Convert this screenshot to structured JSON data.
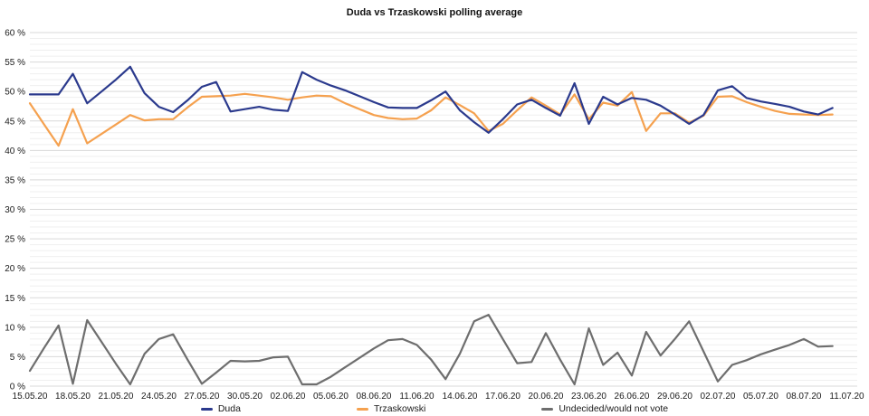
{
  "chart_data": {
    "type": "line",
    "title": "Duda vs Trzaskowski polling average",
    "xlabel": "",
    "ylabel": "",
    "ylim": [
      0,
      60
    ],
    "y_tick_step": 5,
    "y_minor_step": 1,
    "y_tick_suffix": " %",
    "grid": "horizontal",
    "legend_position": "bottom",
    "axis_text_color": "#1a1a1a",
    "grid_minor_color": "#efefef",
    "grid_major_color": "#d9d9d9",
    "x_tick_labels": [
      "15.05.20",
      "18.05.20",
      "21.05.20",
      "24.05.20",
      "27.05.20",
      "30.05.20",
      "02.06.20",
      "05.06.20",
      "08.06.20",
      "11.06.20",
      "14.06.20",
      "17.06.20",
      "20.06.20",
      "23.06.20",
      "26.06.20",
      "29.06.20",
      "02.07.20",
      "05.07.20",
      "08.07.20",
      "11.07.20"
    ],
    "x_tick_every_days": 3,
    "dates": [
      "15.05.20",
      "16.05.20",
      "17.05.20",
      "18.05.20",
      "19.05.20",
      "20.05.20",
      "21.05.20",
      "22.05.20",
      "23.05.20",
      "24.05.20",
      "25.05.20",
      "26.05.20",
      "27.05.20",
      "28.05.20",
      "29.05.20",
      "30.05.20",
      "31.05.20",
      "01.06.20",
      "02.06.20",
      "03.06.20",
      "04.06.20",
      "05.06.20",
      "06.06.20",
      "07.06.20",
      "08.06.20",
      "09.06.20",
      "10.06.20",
      "11.06.20",
      "12.06.20",
      "13.06.20",
      "14.06.20",
      "15.06.20",
      "16.06.20",
      "17.06.20",
      "18.06.20",
      "19.06.20",
      "20.06.20",
      "21.06.20",
      "22.06.20",
      "23.06.20",
      "24.06.20",
      "25.06.20",
      "26.06.20",
      "27.06.20",
      "28.06.20",
      "29.06.20",
      "30.06.20",
      "01.07.20",
      "02.07.20",
      "03.07.20",
      "04.07.20",
      "05.07.20",
      "06.07.20",
      "07.07.20",
      "08.07.20",
      "09.07.20",
      "10.07.20"
    ],
    "series": [
      {
        "name": "Duda",
        "color": "#2b3a8d",
        "values": [
          49.5,
          49.5,
          49.5,
          53,
          48,
          50,
          52,
          54.2,
          49.7,
          47.4,
          46.5,
          48.5,
          50.8,
          51.6,
          46.6,
          47,
          47.4,
          46.9,
          46.7,
          53.3,
          52,
          51,
          50.2,
          49.2,
          48.2,
          47.3,
          47.2,
          47.2,
          48.5,
          50,
          46.8,
          44.8,
          43,
          45.3,
          47.8,
          48.6,
          47.2,
          45.9,
          51.4,
          44.5,
          49.1,
          47.8,
          48.9,
          48.6,
          47.6,
          46.1,
          44.5,
          46,
          50.2,
          50.9,
          48.9,
          48.3,
          47.9,
          47.4,
          46.6,
          46.1,
          47.2
        ]
      },
      {
        "name": "Trzaskowski",
        "color": "#f5a14f",
        "values": [
          48,
          44.4,
          40.8,
          47,
          41.2,
          42.8,
          44.4,
          46,
          45.1,
          45.3,
          45.3,
          47.3,
          49.1,
          49.2,
          49.3,
          49.6,
          49.3,
          49,
          48.6,
          49,
          49.3,
          49.2,
          48,
          47,
          46,
          45.5,
          45.3,
          45.4,
          46.8,
          49,
          47.7,
          46.3,
          43.3,
          44.5,
          46.8,
          49,
          47.6,
          46.1,
          49.5,
          45.3,
          48.1,
          47.6,
          49.9,
          43.3,
          46.3,
          46.3,
          44.7,
          45.9,
          49.1,
          49.2,
          48.2,
          47.4,
          46.7,
          46.2,
          46.1,
          46,
          46.1
        ]
      },
      {
        "name": "Undecided/would not vote",
        "color": "#6e6e6e",
        "values": [
          2.6,
          6.5,
          10.3,
          0.4,
          11.2,
          7.5,
          3.8,
          0.3,
          5.5,
          8,
          8.8,
          4.5,
          0.4,
          2.3,
          4.3,
          4.2,
          4.3,
          4.9,
          5,
          0.3,
          0.3,
          1.6,
          3.2,
          4.8,
          6.4,
          7.8,
          8,
          7,
          4.5,
          1.2,
          5.5,
          11,
          12.1,
          8,
          3.9,
          4.1,
          9,
          4.5,
          0.3,
          9.8,
          3.6,
          5.7,
          1.8,
          9.2,
          5.2,
          8,
          11,
          5.9,
          0.8,
          3.6,
          4.4,
          5.4,
          6.2,
          7,
          8,
          6.7,
          6.8
        ]
      }
    ]
  }
}
